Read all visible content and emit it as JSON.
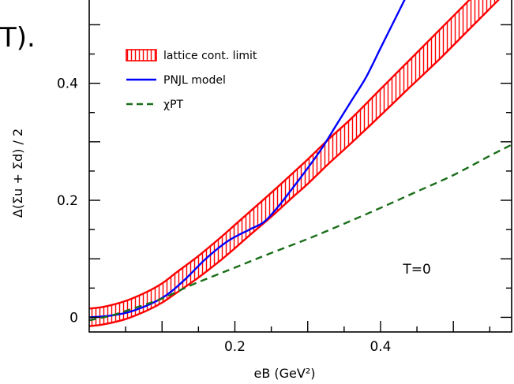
{
  "clipped_text": "T).",
  "chart_data": {
    "type": "line",
    "xlabel": "eB (GeV²)",
    "ylabel": "Δ(Σu + Σd) / 2",
    "xlim": [
      0.0,
      0.58
    ],
    "ylim": [
      -0.025,
      0.545
    ],
    "xticks": [
      0.2,
      0.4
    ],
    "yticks": [
      0,
      0.2,
      0.4
    ],
    "grid": false,
    "legend_position": "top-left",
    "annotation": "T=0",
    "series": [
      {
        "name": "lattice cont. limit",
        "style": "band",
        "color": "#ff0000",
        "x": [
          0.0,
          0.02,
          0.05,
          0.08,
          0.1,
          0.12,
          0.15,
          0.18,
          0.2,
          0.22,
          0.25,
          0.28,
          0.3,
          0.33,
          0.36,
          0.4,
          0.44,
          0.48,
          0.52,
          0.56,
          0.58
        ],
        "upper": [
          0.015,
          0.018,
          0.028,
          0.044,
          0.058,
          0.077,
          0.105,
          0.136,
          0.158,
          0.18,
          0.213,
          0.247,
          0.27,
          0.306,
          0.34,
          0.39,
          0.44,
          0.49,
          0.54,
          0.59,
          0.615
        ],
        "lower": [
          -0.015,
          -0.012,
          -0.003,
          0.012,
          0.025,
          0.042,
          0.068,
          0.097,
          0.118,
          0.14,
          0.172,
          0.206,
          0.228,
          0.264,
          0.298,
          0.345,
          0.393,
          0.44,
          0.49,
          0.54,
          0.565
        ]
      },
      {
        "name": "PNJL model",
        "style": "solid",
        "color": "#0000ff",
        "x": [
          0.0,
          0.03,
          0.06,
          0.1,
          0.13,
          0.16,
          0.19,
          0.22,
          0.24,
          0.26,
          0.28,
          0.3,
          0.32,
          0.34,
          0.36,
          0.38,
          0.4,
          0.42,
          0.44
        ],
        "y": [
          0.0,
          0.003,
          0.011,
          0.033,
          0.063,
          0.1,
          0.13,
          0.15,
          0.163,
          0.19,
          0.222,
          0.255,
          0.29,
          0.33,
          0.37,
          0.41,
          0.46,
          0.51,
          0.56
        ]
      },
      {
        "name": "χPT",
        "style": "dashed",
        "color": "#1a6e1a",
        "x": [
          0.0,
          0.03,
          0.06,
          0.1,
          0.14,
          0.2,
          0.25,
          0.3,
          0.35,
          0.4,
          0.45,
          0.5,
          0.55,
          0.58
        ],
        "y": [
          -0.005,
          0.003,
          0.015,
          0.032,
          0.055,
          0.085,
          0.11,
          0.134,
          0.16,
          0.187,
          0.215,
          0.243,
          0.276,
          0.295
        ]
      }
    ]
  }
}
